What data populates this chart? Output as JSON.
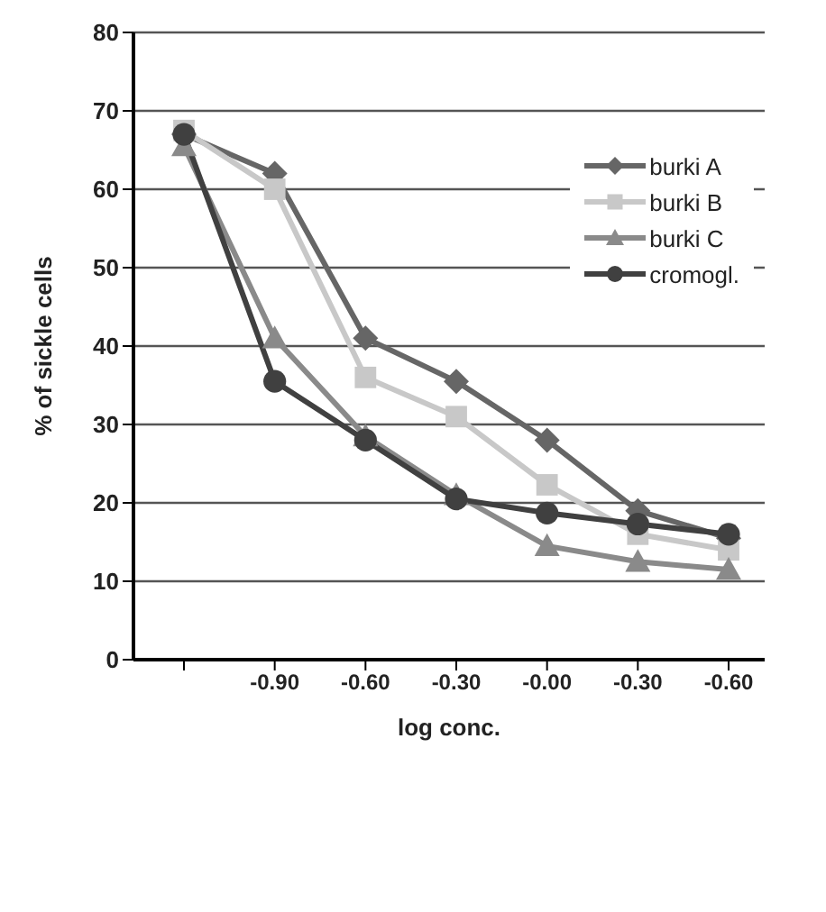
{
  "chart_data": {
    "type": "line",
    "xlabel": "log conc.",
    "ylabel": "% of sickle cells",
    "categories": [
      null,
      "-0.90",
      "-0.60",
      "-0.30",
      "-0.00",
      "-0.30",
      "-0.60"
    ],
    "series": [
      {
        "name": "burki A",
        "color": "#666666",
        "marker": "diamond",
        "values": [
          67,
          62,
          41,
          35.5,
          28,
          19,
          15.5
        ]
      },
      {
        "name": "burki B",
        "color": "#c8c8c8",
        "marker": "square",
        "values": [
          67.5,
          60,
          36,
          31,
          22.3,
          16,
          14
        ]
      },
      {
        "name": "burki C",
        "color": "#8a8a8a",
        "marker": "triangle",
        "values": [
          65.5,
          41,
          28.5,
          21,
          14.5,
          12.5,
          11.5
        ]
      },
      {
        "name": "cromogl.",
        "color": "#404040",
        "marker": "circle",
        "values": [
          67,
          35.5,
          28,
          20.5,
          18.7,
          17.3,
          16
        ]
      }
    ],
    "ylim": [
      0,
      80
    ],
    "yticks": [
      0,
      10,
      20,
      30,
      40,
      50,
      60,
      70,
      80
    ],
    "grid": "y",
    "legend": "top right"
  }
}
